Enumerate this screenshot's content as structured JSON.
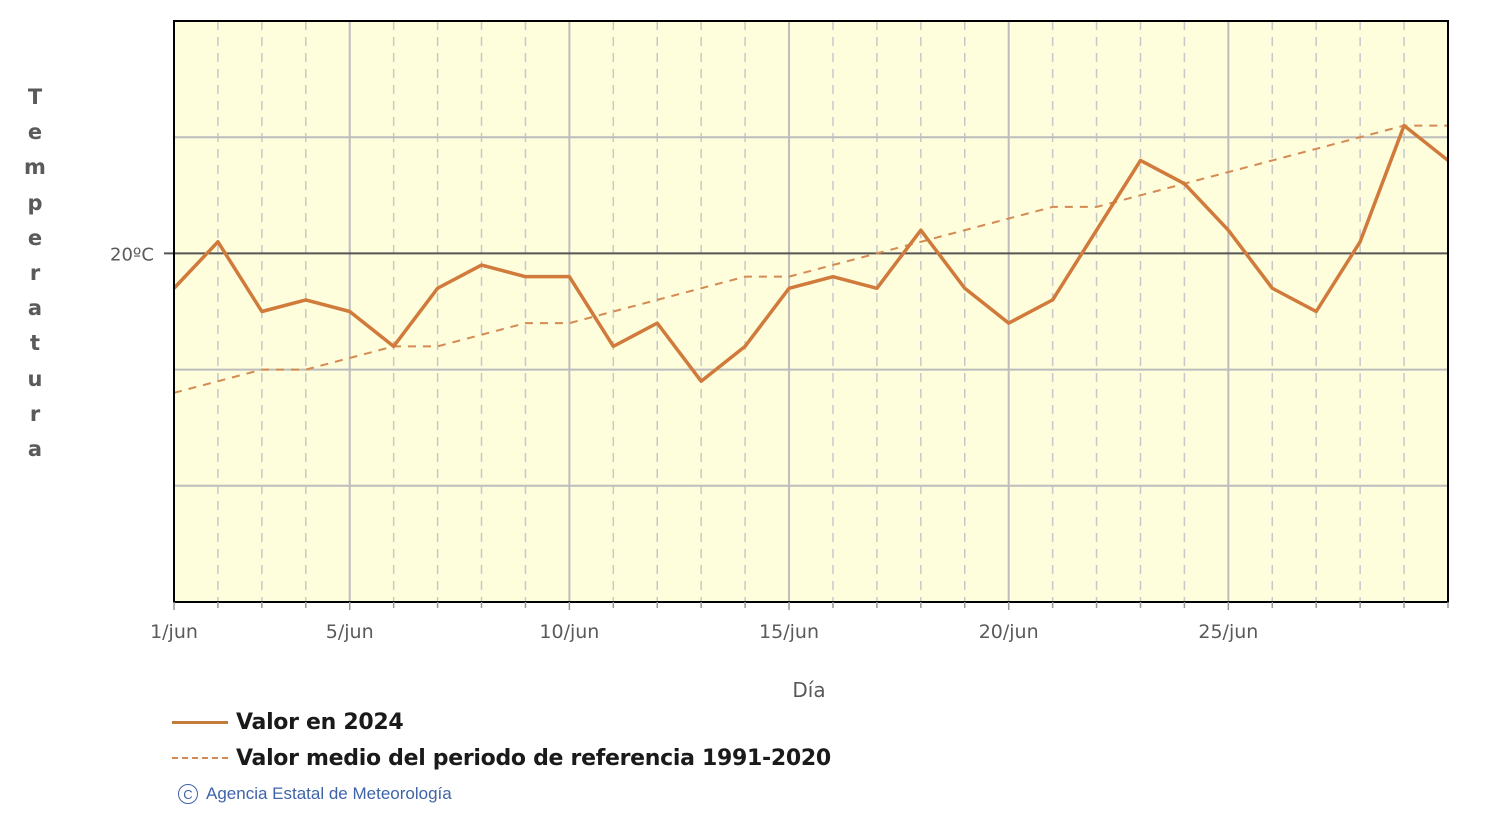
{
  "chart_data": {
    "type": "line",
    "title": "",
    "xlabel": "Día",
    "ylabel": "Temperatura",
    "ylim": [
      14,
      24
    ],
    "y_gridlines": [
      14,
      16,
      18,
      20,
      22,
      24
    ],
    "y_tick_labels": [
      {
        "value": 20,
        "label": "20ºC"
      }
    ],
    "x_tick_labels": [
      {
        "day": 1,
        "label": "1/jun"
      },
      {
        "day": 5,
        "label": "5/jun"
      },
      {
        "day": 10,
        "label": "10/jun"
      },
      {
        "day": 15,
        "label": "15/jun"
      },
      {
        "day": 20,
        "label": "20/jun"
      },
      {
        "day": 25,
        "label": "25/jun"
      }
    ],
    "x": [
      1,
      2,
      3,
      4,
      5,
      6,
      7,
      8,
      9,
      10,
      11,
      12,
      13,
      14,
      15,
      16,
      17,
      18,
      19,
      20,
      21,
      22,
      23,
      24,
      25,
      26,
      27,
      28,
      29,
      30
    ],
    "grid": true,
    "legend_position": "bottom-left",
    "series": [
      {
        "name": "Valor en 2024",
        "style": "solid",
        "color": "#d07a3c",
        "values": [
          19.4,
          20.2,
          19.0,
          19.2,
          19.0,
          18.4,
          19.4,
          19.8,
          19.6,
          19.6,
          18.4,
          18.8,
          17.8,
          18.4,
          19.4,
          19.6,
          19.4,
          20.4,
          19.4,
          18.8,
          19.2,
          20.4,
          21.6,
          21.2,
          20.4,
          19.4,
          19.0,
          20.2,
          22.2,
          21.6
        ]
      },
      {
        "name": "Valor medio del periodo de referencia 1991-2020",
        "style": "dashed",
        "color": "#d48a52",
        "values": [
          17.6,
          17.8,
          18.0,
          18.0,
          18.2,
          18.4,
          18.4,
          18.6,
          18.8,
          18.8,
          19.0,
          19.2,
          19.4,
          19.6,
          19.6,
          19.8,
          20.0,
          20.2,
          20.4,
          20.6,
          20.8,
          20.8,
          21.0,
          21.2,
          21.4,
          21.6,
          21.8,
          22.0,
          22.2,
          22.2
        ]
      }
    ]
  },
  "colors": {
    "plot_bg": "#fefddc",
    "grid_major": "#bdbdbd",
    "grid_minor": "#c8c8c8",
    "reference_line": "#555555",
    "axis": "#000000",
    "tick_text": "#5a5a5a",
    "credit": "#3f63a8"
  },
  "axis": {
    "ylabel_letters": [
      "T",
      "e",
      "m",
      "p",
      "e",
      "r",
      "a",
      "t",
      "u",
      "r",
      "a"
    ],
    "xlabel": "Día"
  },
  "legend": {
    "items": [
      {
        "label": "Valor en 2024",
        "style": "solid"
      },
      {
        "label": "Valor medio del periodo de referencia 1991-2020",
        "style": "dashed"
      }
    ]
  },
  "credit": {
    "icon": "copyright-icon",
    "symbol": "C",
    "text": "Agencia Estatal de Meteorología"
  }
}
